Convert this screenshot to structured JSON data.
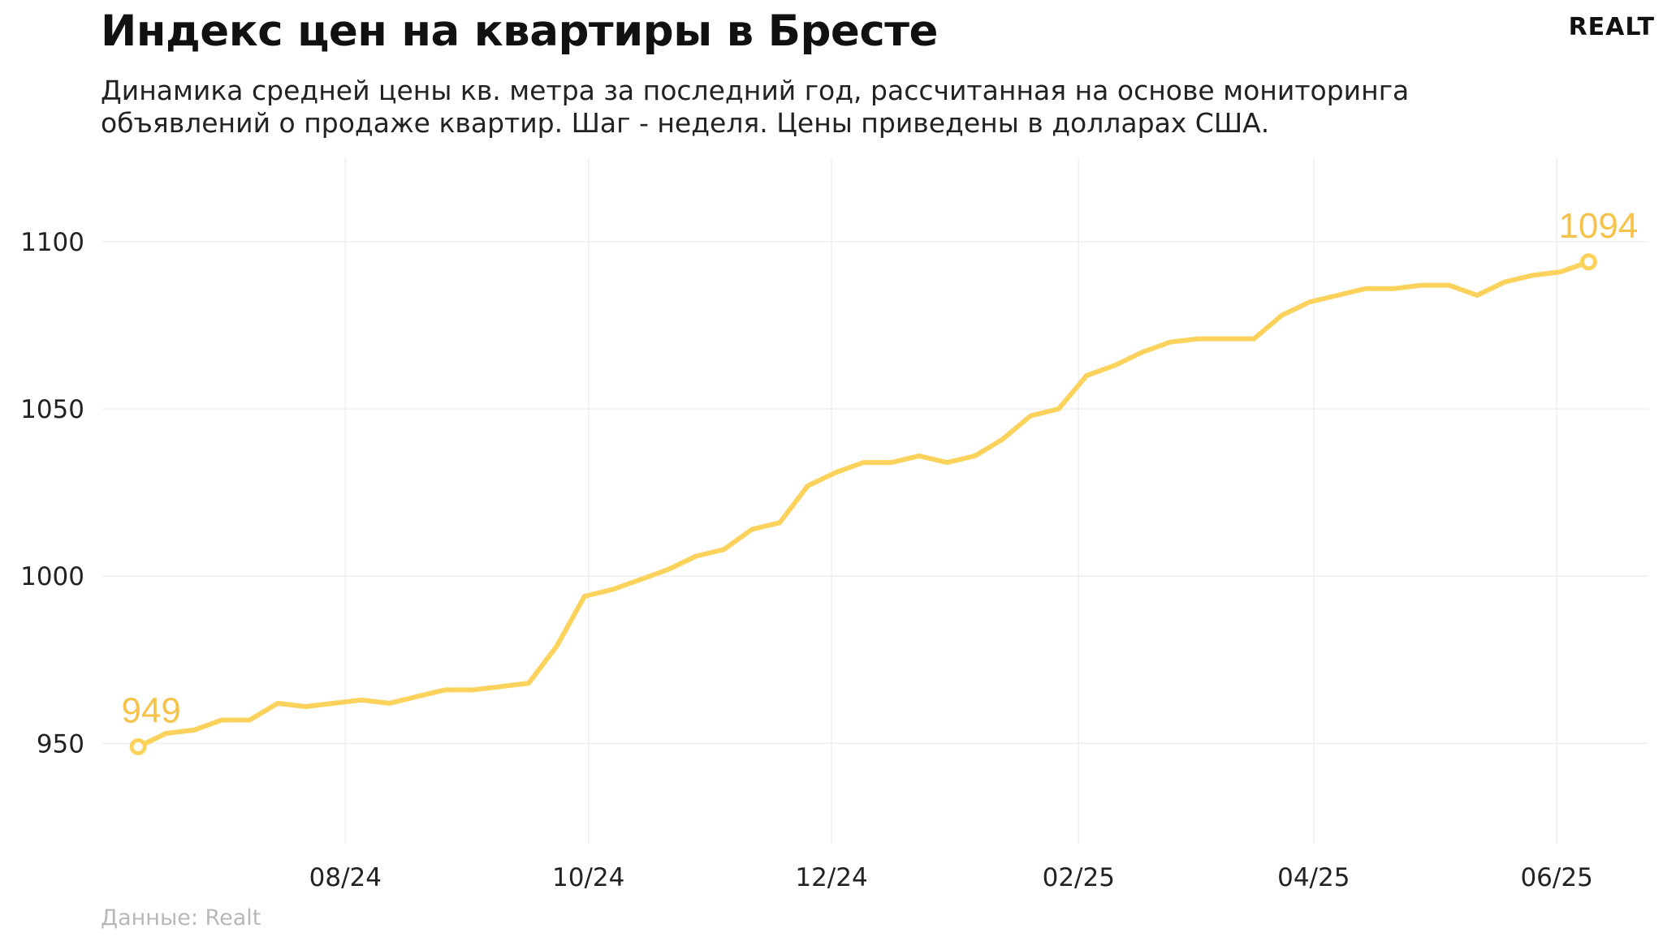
{
  "title": "Индекс цен на квартиры в Бресте",
  "subtitle": "Динамика средней цены кв. метра за последний год, рассчитанная на основе мониторинга объявлений о продаже квартир. Шаг - неделя. Цены приведены в долларах США.",
  "logo": "REALT",
  "source": "Данные: Realt",
  "colors": {
    "line": "#fbd35c",
    "label": "#f5c24a",
    "grid": "#efefef"
  },
  "chart_data": {
    "type": "line",
    "title": "Индекс цен на квартиры в Бресте",
    "xlabel": "",
    "ylabel": "",
    "ylim": [
      920,
      1125
    ],
    "yticks": [
      950,
      1000,
      1050,
      1100
    ],
    "x_tick_labels": [
      "08/24",
      "10/24",
      "12/24",
      "02/25",
      "04/25",
      "06/25"
    ],
    "x_tick_positions": [
      "2024-08-01",
      "2024-10-01",
      "2024-12-01",
      "2025-02-01",
      "2025-04-01",
      "2025-06-01"
    ],
    "x_range": [
      "2024-06-01",
      "2025-06-24"
    ],
    "grid": true,
    "series": [
      {
        "x": [
          "2024-06-10",
          "2024-06-17",
          "2024-06-24",
          "2024-07-01",
          "2024-07-08",
          "2024-07-15",
          "2024-07-22",
          "2024-07-29",
          "2024-08-05",
          "2024-08-12",
          "2024-08-19",
          "2024-08-26",
          "2024-09-02",
          "2024-09-09",
          "2024-09-16",
          "2024-09-23",
          "2024-09-30",
          "2024-10-07",
          "2024-10-14",
          "2024-10-21",
          "2024-10-28",
          "2024-11-04",
          "2024-11-11",
          "2024-11-18",
          "2024-11-25",
          "2024-12-02",
          "2024-12-09",
          "2024-12-16",
          "2024-12-23",
          "2024-12-30",
          "2025-01-06",
          "2025-01-13",
          "2025-01-20",
          "2025-01-27",
          "2025-02-03",
          "2025-02-10",
          "2025-02-17",
          "2025-02-24",
          "2025-03-03",
          "2025-03-10",
          "2025-03-17",
          "2025-03-24",
          "2025-03-31",
          "2025-04-07",
          "2025-04-14",
          "2025-04-21",
          "2025-04-28",
          "2025-05-05",
          "2025-05-12",
          "2025-05-19",
          "2025-05-26",
          "2025-06-02",
          "2025-06-09"
        ],
        "values": [
          949,
          953,
          954,
          957,
          957,
          962,
          961,
          962,
          963,
          962,
          964,
          966,
          966,
          967,
          968,
          979,
          994,
          996,
          999,
          1002,
          1006,
          1008,
          1014,
          1016,
          1027,
          1031,
          1034,
          1034,
          1036,
          1034,
          1036,
          1041,
          1048,
          1050,
          1060,
          1063,
          1067,
          1070,
          1071,
          1071,
          1071,
          1078,
          1082,
          1084,
          1086,
          1086,
          1087,
          1087,
          1084,
          1088,
          1090,
          1091,
          1094
        ]
      }
    ],
    "annotations": [
      {
        "text": "949",
        "at": "first"
      },
      {
        "text": "1094",
        "at": "last"
      }
    ]
  }
}
